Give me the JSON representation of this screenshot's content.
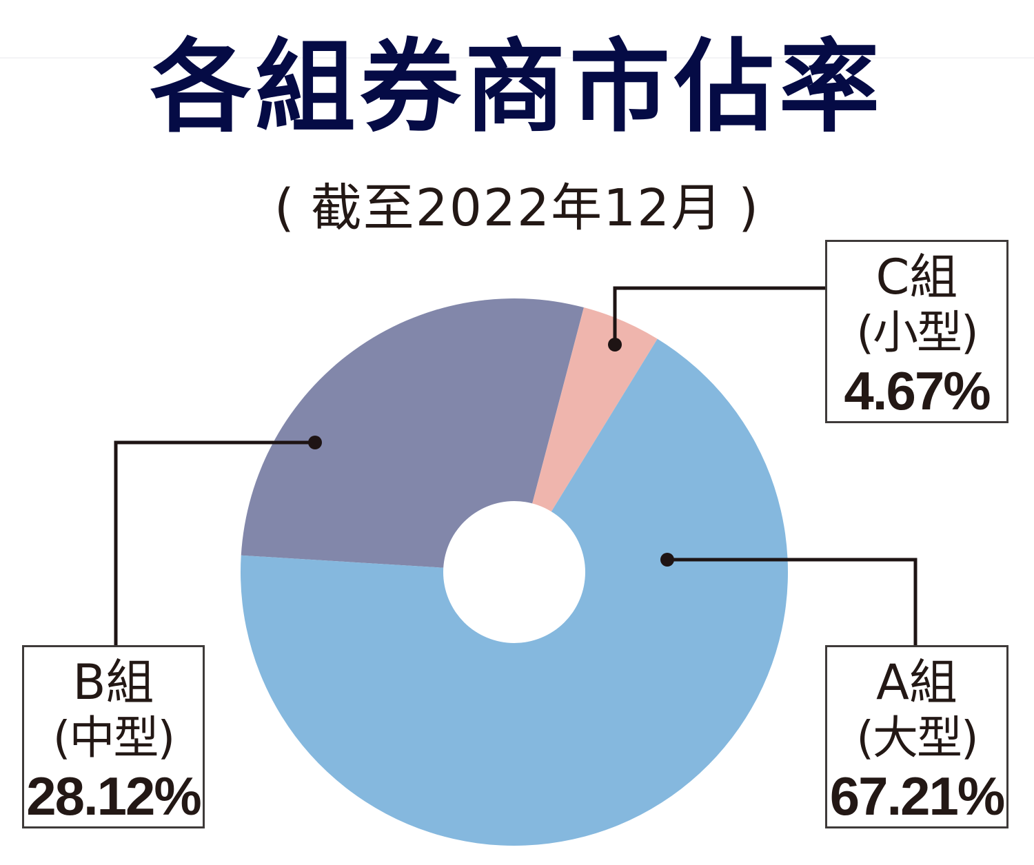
{
  "title": "各組券商市佔率",
  "subtitle": {
    "open_paren": "(",
    "text": "截至2022年12月",
    "close_paren": ")"
  },
  "callouts": {
    "a": {
      "group": "A組",
      "size": "(大型)",
      "percent": "67.21%"
    },
    "b": {
      "group": "B組",
      "size": "(中型)",
      "percent": "28.12%"
    },
    "c": {
      "group": "C組",
      "size": "(小型)",
      "percent": "4.67%"
    }
  },
  "colors": {
    "title": "#050b45",
    "text": "#231815",
    "slice_a": "#85b8de",
    "slice_b": "#8287aa",
    "slice_c": "#efb5ad",
    "leader": "#1e1414"
  },
  "chart_data": {
    "type": "pie",
    "variant": "donut",
    "title": "各組券商市佔率",
    "subtitle": "(截至2022年12月)",
    "categories": [
      "A組(大型)",
      "B組(中型)",
      "C組(小型)"
    ],
    "values": [
      67.21,
      28.12,
      4.67
    ],
    "unit": "%",
    "labels": [
      "A組 (大型) 67.21%",
      "B組 (中型) 28.12%",
      "C組 (小型) 4.67%"
    ],
    "colors": [
      "#85b8de",
      "#8287aa",
      "#efb5ad"
    ],
    "draw_order": [
      "B組(中型)",
      "C組(小型)",
      "A組(大型)"
    ],
    "start_angle_deg": 183.5,
    "direction": "clockwise",
    "legend": "callout boxes with leader lines",
    "center": [
      746,
      830
    ],
    "outer_radius": 397,
    "inner_radius": 103
  }
}
